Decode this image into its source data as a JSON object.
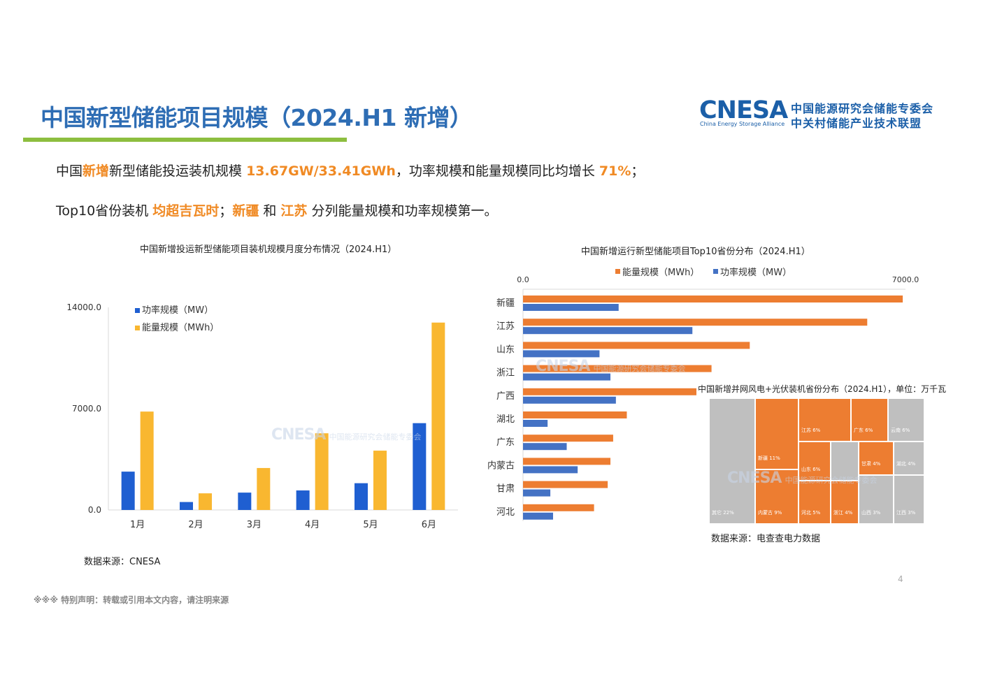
{
  "header": {
    "title": "中国新型储能项目规模（2024.H1  新增）",
    "logo": {
      "text": "CNESA",
      "en": "China Energy Storage Alliance",
      "line1": "中国能源研究会储能专委会",
      "line2": "中关村储能产业技术联盟"
    }
  },
  "summary": {
    "line1": {
      "a": "中国",
      "b": "新增",
      "c": "新型储能投运装机规模 ",
      "d": "13.67GW/33.41GWh",
      "e": "，功率规模和能量规模同比均增长 ",
      "f": "71%",
      "g": "；"
    },
    "line2": {
      "a": "Top10省份装机 ",
      "b": "均超吉瓦时",
      "c": "；",
      "d": "新疆",
      "e": " 和 ",
      "f": "江苏",
      "g": " 分列能量规模和功率规模第一。"
    }
  },
  "colors": {
    "title": "#2E6DB4",
    "accent_bar": "#8DBE3F",
    "highlight": "#F08A24",
    "power_bar": "#1F5FD1",
    "energy_bar": "#F9B730",
    "orange": "#ED7D31",
    "blue": "#4472C4",
    "treemap_gray": "#BFBFBF"
  },
  "chart_data": [
    {
      "type": "bar",
      "title": "中国新增投运新型储能项目装机规模月度分布情况（2024.H1）",
      "categories": [
        "1月",
        "2月",
        "3月",
        "4月",
        "5月",
        "6月"
      ],
      "series": [
        {
          "name": "功率规模（MW）",
          "values": [
            2650,
            550,
            1200,
            1350,
            1850,
            6000
          ]
        },
        {
          "name": "能量规模（MWh）",
          "values": [
            6800,
            1150,
            2900,
            5300,
            4100,
            12950
          ]
        }
      ],
      "yticks": [
        "14000.0",
        "7000.0",
        "0.0"
      ],
      "ylim": [
        0,
        14000
      ],
      "legend": "top-left",
      "source": "数据来源：CNESA"
    },
    {
      "type": "bar",
      "orientation": "horizontal",
      "title": "中国新增运行新型储能项目Top10省份分布（2024.H1）",
      "categories": [
        "新疆",
        "江苏",
        "山东",
        "浙江",
        "广西",
        "湖北",
        "广东",
        "内蒙古",
        "甘肃",
        "河北"
      ],
      "series": [
        {
          "name": "能量规模（MWh）",
          "values": [
            6950,
            6300,
            4150,
            3450,
            3400,
            1900,
            1650,
            1600,
            1550,
            1300
          ]
        },
        {
          "name": "功率规模（MW）",
          "values": [
            1750,
            3100,
            1400,
            1600,
            1700,
            450,
            800,
            1000,
            500,
            550
          ]
        }
      ],
      "xticks": [
        "0.0",
        "7000.0"
      ],
      "xlim": [
        0,
        7000
      ],
      "legend": "top"
    },
    {
      "type": "treemap",
      "title": "中国新增并网风电+光伏装机省份分布（2024.H1），单位：万千瓦",
      "cells": [
        {
          "label": "其它 22%",
          "value": 22
        },
        {
          "label": "新疆 11%",
          "value": 11
        },
        {
          "label": "内蒙古 9%",
          "value": 9
        },
        {
          "label": "江苏 6%",
          "value": 6
        },
        {
          "label": "山东 6%",
          "value": 6
        },
        {
          "label": "河北 5%",
          "value": 5
        },
        {
          "label": "广东 6%",
          "value": 6
        },
        {
          "label": "云南 6%",
          "value": 6
        },
        {
          "label": "甘肃 4%",
          "value": 4
        },
        {
          "label": "湖北 4%",
          "value": 4
        },
        {
          "label": "浙江 4%",
          "value": 4
        },
        {
          "label": "山西 3%",
          "value": 3
        },
        {
          "label": "江西 3%",
          "value": 3
        }
      ],
      "source": "数据来源：电查查电力数据"
    }
  ],
  "footer": {
    "disclaimer": "※※※ 特别声明：转载或引用本文内容，请注明来源",
    "page": "4"
  }
}
